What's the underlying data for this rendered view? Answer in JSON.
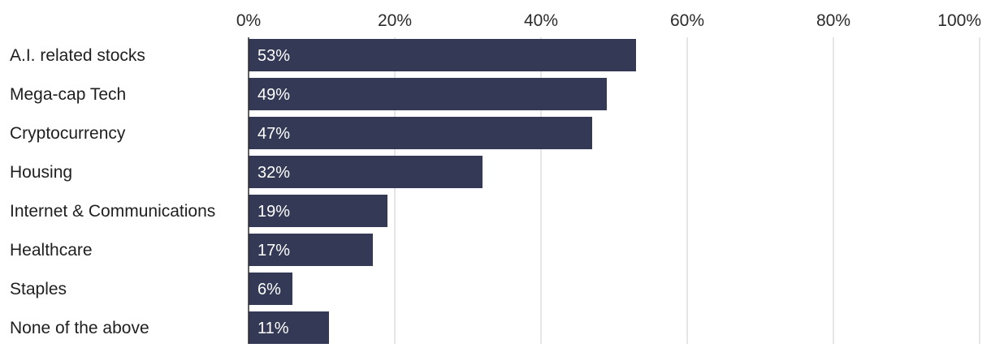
{
  "chart_data": {
    "type": "bar",
    "orientation": "horizontal",
    "categories": [
      "A.I. related stocks",
      "Mega-cap Tech",
      "Cryptocurrency",
      "Housing",
      "Internet & Communications",
      "Healthcare",
      "Staples",
      "None of the above"
    ],
    "values": [
      53,
      49,
      47,
      32,
      19,
      17,
      6,
      11
    ],
    "data_labels": [
      "53%",
      "49%",
      "47%",
      "32%",
      "19%",
      "17%",
      "6%",
      "11%"
    ],
    "title": "",
    "xlabel": "",
    "ylabel": "",
    "xlim": [
      0,
      100
    ],
    "x_ticks": [
      0,
      20,
      40,
      60,
      80,
      100
    ],
    "x_tick_labels": [
      "0%",
      "20%",
      "40%",
      "60%",
      "80%",
      "100%"
    ],
    "x_axis_position": "top",
    "grid": true,
    "legend": "none",
    "bar_color": "#343a55",
    "grid_color": "#dedede"
  }
}
